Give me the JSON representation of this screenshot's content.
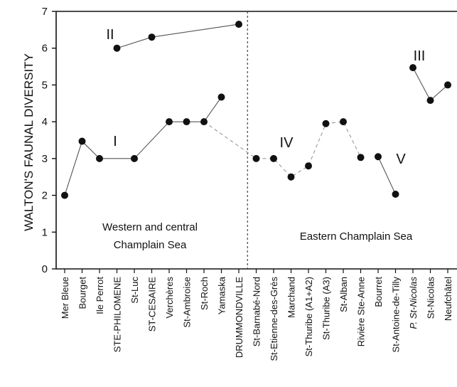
{
  "chart_data": {
    "type": "scatter",
    "ylabel": "WALTON'S FAUNAL DIVERSITY",
    "xlabel": "",
    "ylim": [
      0,
      7
    ],
    "yticks": [
      0,
      1,
      2,
      3,
      4,
      5,
      6,
      7
    ],
    "grid": false,
    "categories": [
      {
        "label": "Mer Bleue",
        "italic": false
      },
      {
        "label": "Bourget",
        "italic": false
      },
      {
        "label": "Ile Perrot",
        "italic": false
      },
      {
        "label": "STE-PHILOMENE",
        "italic": false
      },
      {
        "label": "St-Luc",
        "italic": false
      },
      {
        "label": "ST-CESAIRE",
        "italic": false
      },
      {
        "label": "Verchères",
        "italic": false
      },
      {
        "label": "St-Ambroise",
        "italic": false
      },
      {
        "label": "St-Roch",
        "italic": false
      },
      {
        "label": "Yamaska",
        "italic": false
      },
      {
        "label": "DRUMMONDVILLE",
        "italic": false
      },
      {
        "label": "St-Barnabé-Nord",
        "italic": false
      },
      {
        "label": "St-Etienne-des-Grès",
        "italic": false
      },
      {
        "label": "Marchand",
        "italic": false
      },
      {
        "label": "St-Thuribe (A1+A2)",
        "italic": false
      },
      {
        "label": "St-Thuribe (A3)",
        "italic": false
      },
      {
        "label": "St-Alban",
        "italic": false
      },
      {
        "label": "Rivière Ste-Anne",
        "italic": false
      },
      {
        "label": "Bourret",
        "italic": false
      },
      {
        "label": "St-Antoine-de-Tilly",
        "italic": false
      },
      {
        "label": "P. St-Nicolas",
        "italic": true
      },
      {
        "label": "St-Nicolas",
        "italic": false
      },
      {
        "label": "Neufchâtel",
        "italic": false
      }
    ],
    "points": [
      {
        "cat": 0,
        "y": 2.0
      },
      {
        "cat": 1,
        "y": 3.47
      },
      {
        "cat": 2,
        "y": 3.0
      },
      {
        "cat": 3,
        "y": 6.0
      },
      {
        "cat": 4,
        "y": 3.0
      },
      {
        "cat": 5,
        "y": 6.3
      },
      {
        "cat": 6,
        "y": 4.0
      },
      {
        "cat": 7,
        "y": 4.0
      },
      {
        "cat": 8,
        "y": 4.0
      },
      {
        "cat": 9,
        "y": 4.67
      },
      {
        "cat": 10,
        "y": 6.65
      },
      {
        "cat": 11,
        "y": 3.0
      },
      {
        "cat": 12,
        "y": 3.0
      },
      {
        "cat": 13,
        "y": 2.5
      },
      {
        "cat": 14,
        "y": 2.8
      },
      {
        "cat": 15,
        "y": 3.95
      },
      {
        "cat": 16,
        "y": 4.0
      },
      {
        "cat": 17,
        "y": 3.03
      },
      {
        "cat": 18,
        "y": 3.05
      },
      {
        "cat": 19,
        "y": 2.03
      },
      {
        "cat": 20,
        "y": 5.47
      },
      {
        "cat": 21,
        "y": 4.58
      },
      {
        "cat": 22,
        "y": 5.0
      }
    ],
    "series": [
      {
        "name": "I",
        "cats": [
          0,
          1,
          2,
          4,
          6,
          7,
          8,
          9
        ],
        "line": "solid"
      },
      {
        "name": "II",
        "cats": [
          3,
          5,
          10
        ],
        "line": "solid"
      },
      {
        "name": "III",
        "cats": [
          20,
          21,
          22
        ],
        "line": "solid"
      },
      {
        "name": "IV",
        "cats": [
          11,
          12,
          13,
          14,
          15,
          16,
          17
        ],
        "line": "dashed"
      },
      {
        "name": "V",
        "cats": [
          18,
          19
        ],
        "line": "solid"
      }
    ],
    "connectors": [
      {
        "from": 8,
        "to": 11,
        "line": "dashed"
      }
    ],
    "divider_after_cat": 10,
    "annotations": [
      "Western and central",
      "Champlain Sea",
      "Eastern Champlain Sea"
    ],
    "colors": {
      "marker": "#111111",
      "line": "#555555",
      "dashed_line": "#9a9a9a",
      "axis": "#111111"
    }
  }
}
